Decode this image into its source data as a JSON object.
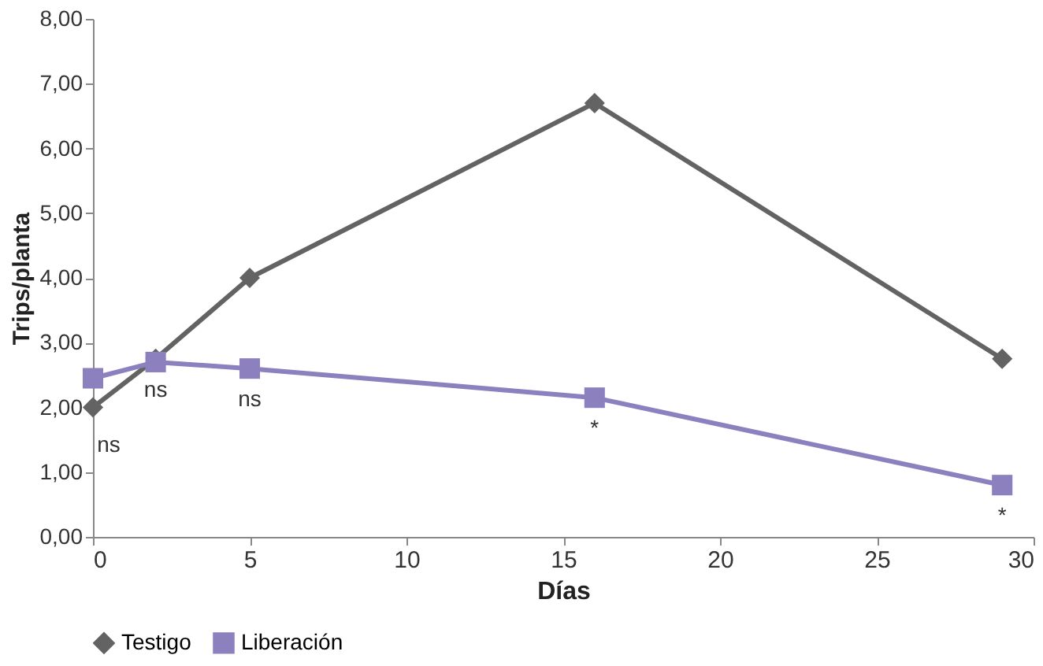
{
  "chart_data": {
    "type": "line",
    "xlabel": "Días",
    "ylabel": "Trips/planta",
    "xlim": [
      0,
      30
    ],
    "xticks": [
      0,
      5,
      10,
      15,
      20,
      25,
      30
    ],
    "ylim": [
      0,
      8
    ],
    "yticks": [
      {
        "value": 0,
        "label": "0,00"
      },
      {
        "value": 1,
        "label": "1,00"
      },
      {
        "value": 2,
        "label": "2,00"
      },
      {
        "value": 3,
        "label": "3,00"
      },
      {
        "value": 4,
        "label": "4,00"
      },
      {
        "value": 5,
        "label": "5,00"
      },
      {
        "value": 6,
        "label": "6,00"
      },
      {
        "value": 7,
        "label": "7,00"
      },
      {
        "value": 8,
        "label": "8,00"
      }
    ],
    "grid": false,
    "legend": "bottom",
    "line_style": "solid",
    "series": [
      {
        "name": "Testigo",
        "color": "#636363",
        "marker": "diamond",
        "x": [
          0,
          2,
          5,
          16,
          29
        ],
        "values": [
          2.0,
          2.75,
          4.0,
          6.7,
          2.75
        ]
      },
      {
        "name": "Liberación",
        "color": "#8c80bf",
        "marker": "square",
        "x": [
          0,
          2,
          5,
          16,
          29
        ],
        "values": [
          2.45,
          2.7,
          2.6,
          2.15,
          0.8
        ]
      }
    ],
    "annotations": [
      {
        "text": "ns",
        "x": 0,
        "y": 2.0
      },
      {
        "text": "ns",
        "x": 2,
        "y": 2.75
      },
      {
        "text": "ns",
        "x": 5,
        "y": 2.6
      },
      {
        "text": "*",
        "x": 16,
        "y": 2.15
      },
      {
        "text": "*",
        "x": 29,
        "y": 0.8
      }
    ]
  }
}
